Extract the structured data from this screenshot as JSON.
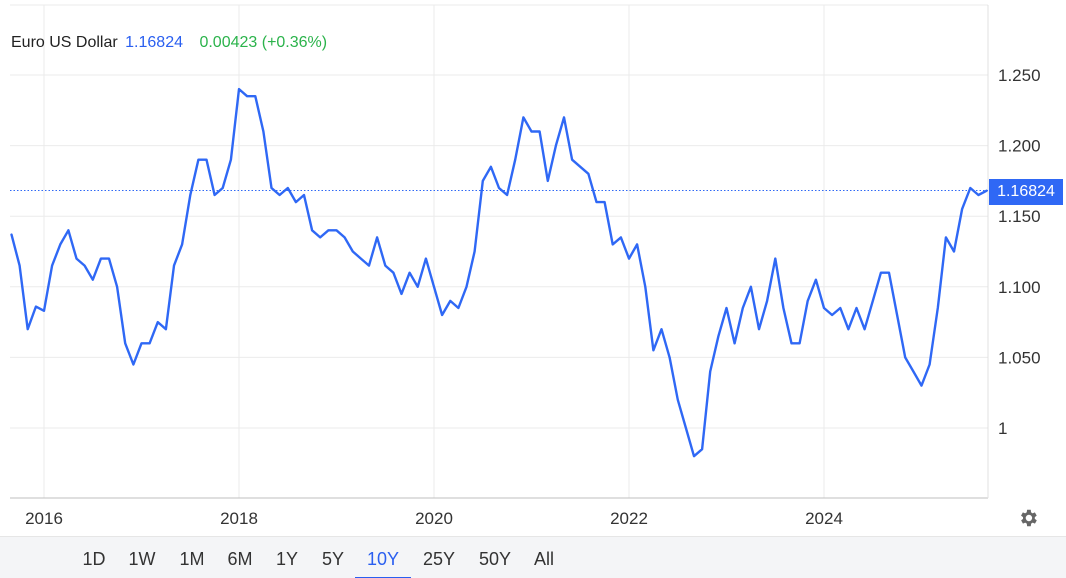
{
  "legend": {
    "name": "Euro US Dollar",
    "price": "1.16824",
    "change": "0.00423 (+0.36%)"
  },
  "price_tag": "1.16824",
  "ranges": [
    "1D",
    "1W",
    "1M",
    "6M",
    "1Y",
    "5Y",
    "10Y",
    "25Y",
    "50Y",
    "All"
  ],
  "active_range": "10Y",
  "colors": {
    "line": "#2f68f5",
    "price_tag": "#2f68f5",
    "change": "#2bb34b",
    "grid": "#ebebeb"
  },
  "icons": {
    "settings": "gear-icon"
  },
  "chart_data": {
    "type": "line",
    "title": "",
    "xlabel": "",
    "ylabel": "",
    "x_ticks": [
      "2016",
      "2018",
      "2020",
      "2022",
      "2024"
    ],
    "y_ticks": [
      "1",
      "1.050",
      "1.100",
      "1.150",
      "1.200",
      "1.250"
    ],
    "ylim": [
      0.95,
      1.28
    ],
    "xlim": [
      "2015-09",
      "2025-09"
    ],
    "current_value": 1.16824,
    "grid": true,
    "series": [
      {
        "name": "",
        "points": [
          [
            "2015-09",
            1.137
          ],
          [
            "2015-10",
            1.115
          ],
          [
            "2015-11",
            1.07
          ],
          [
            "2015-12",
            1.086
          ],
          [
            "2016-01",
            1.083
          ],
          [
            "2016-02",
            1.115
          ],
          [
            "2016-03",
            1.13
          ],
          [
            "2016-04",
            1.14
          ],
          [
            "2016-05",
            1.12
          ],
          [
            "2016-06",
            1.115
          ],
          [
            "2016-07",
            1.105
          ],
          [
            "2016-08",
            1.12
          ],
          [
            "2016-09",
            1.12
          ],
          [
            "2016-10",
            1.1
          ],
          [
            "2016-11",
            1.06
          ],
          [
            "2016-12",
            1.045
          ],
          [
            "2017-01",
            1.06
          ],
          [
            "2017-02",
            1.06
          ],
          [
            "2017-03",
            1.075
          ],
          [
            "2017-04",
            1.07
          ],
          [
            "2017-05",
            1.115
          ],
          [
            "2017-06",
            1.13
          ],
          [
            "2017-07",
            1.165
          ],
          [
            "2017-08",
            1.19
          ],
          [
            "2017-09",
            1.19
          ],
          [
            "2017-10",
            1.165
          ],
          [
            "2017-11",
            1.17
          ],
          [
            "2017-12",
            1.19
          ],
          [
            "2018-01",
            1.24
          ],
          [
            "2018-02",
            1.235
          ],
          [
            "2018-03",
            1.235
          ],
          [
            "2018-04",
            1.21
          ],
          [
            "2018-05",
            1.17
          ],
          [
            "2018-06",
            1.165
          ],
          [
            "2018-07",
            1.17
          ],
          [
            "2018-08",
            1.16
          ],
          [
            "2018-09",
            1.165
          ],
          [
            "2018-10",
            1.14
          ],
          [
            "2018-11",
            1.135
          ],
          [
            "2018-12",
            1.14
          ],
          [
            "2019-01",
            1.14
          ],
          [
            "2019-02",
            1.135
          ],
          [
            "2019-03",
            1.125
          ],
          [
            "2019-04",
            1.12
          ],
          [
            "2019-05",
            1.115
          ],
          [
            "2019-06",
            1.135
          ],
          [
            "2019-07",
            1.115
          ],
          [
            "2019-08",
            1.11
          ],
          [
            "2019-09",
            1.095
          ],
          [
            "2019-10",
            1.11
          ],
          [
            "2019-11",
            1.1
          ],
          [
            "2019-12",
            1.12
          ],
          [
            "2020-01",
            1.1
          ],
          [
            "2020-02",
            1.08
          ],
          [
            "2020-03",
            1.09
          ],
          [
            "2020-04",
            1.085
          ],
          [
            "2020-05",
            1.1
          ],
          [
            "2020-06",
            1.125
          ],
          [
            "2020-07",
            1.175
          ],
          [
            "2020-08",
            1.185
          ],
          [
            "2020-09",
            1.17
          ],
          [
            "2020-10",
            1.165
          ],
          [
            "2020-11",
            1.19
          ],
          [
            "2020-12",
            1.22
          ],
          [
            "2021-01",
            1.21
          ],
          [
            "2021-02",
            1.21
          ],
          [
            "2021-03",
            1.175
          ],
          [
            "2021-04",
            1.2
          ],
          [
            "2021-05",
            1.22
          ],
          [
            "2021-06",
            1.19
          ],
          [
            "2021-07",
            1.185
          ],
          [
            "2021-08",
            1.18
          ],
          [
            "2021-09",
            1.16
          ],
          [
            "2021-10",
            1.16
          ],
          [
            "2021-11",
            1.13
          ],
          [
            "2021-12",
            1.135
          ],
          [
            "2022-01",
            1.12
          ],
          [
            "2022-02",
            1.13
          ],
          [
            "2022-03",
            1.1
          ],
          [
            "2022-04",
            1.055
          ],
          [
            "2022-05",
            1.07
          ],
          [
            "2022-06",
            1.05
          ],
          [
            "2022-07",
            1.02
          ],
          [
            "2022-08",
            1.0
          ],
          [
            "2022-09",
            0.98
          ],
          [
            "2022-10",
            0.985
          ],
          [
            "2022-11",
            1.04
          ],
          [
            "2022-12",
            1.065
          ],
          [
            "2023-01",
            1.085
          ],
          [
            "2023-02",
            1.06
          ],
          [
            "2023-03",
            1.085
          ],
          [
            "2023-04",
            1.1
          ],
          [
            "2023-05",
            1.07
          ],
          [
            "2023-06",
            1.09
          ],
          [
            "2023-07",
            1.12
          ],
          [
            "2023-08",
            1.085
          ],
          [
            "2023-09",
            1.06
          ],
          [
            "2023-10",
            1.06
          ],
          [
            "2023-11",
            1.09
          ],
          [
            "2023-12",
            1.105
          ],
          [
            "2024-01",
            1.085
          ],
          [
            "2024-02",
            1.08
          ],
          [
            "2024-03",
            1.085
          ],
          [
            "2024-04",
            1.07
          ],
          [
            "2024-05",
            1.085
          ],
          [
            "2024-06",
            1.07
          ],
          [
            "2024-07",
            1.09
          ],
          [
            "2024-08",
            1.11
          ],
          [
            "2024-09",
            1.11
          ],
          [
            "2024-10",
            1.08
          ],
          [
            "2024-11",
            1.05
          ],
          [
            "2024-12",
            1.04
          ],
          [
            "2025-01",
            1.03
          ],
          [
            "2025-02",
            1.045
          ],
          [
            "2025-03",
            1.085
          ],
          [
            "2025-04",
            1.135
          ],
          [
            "2025-05",
            1.125
          ],
          [
            "2025-06",
            1.155
          ],
          [
            "2025-07",
            1.17
          ],
          [
            "2025-08",
            1.165
          ],
          [
            "2025-09",
            1.168
          ]
        ]
      }
    ]
  }
}
